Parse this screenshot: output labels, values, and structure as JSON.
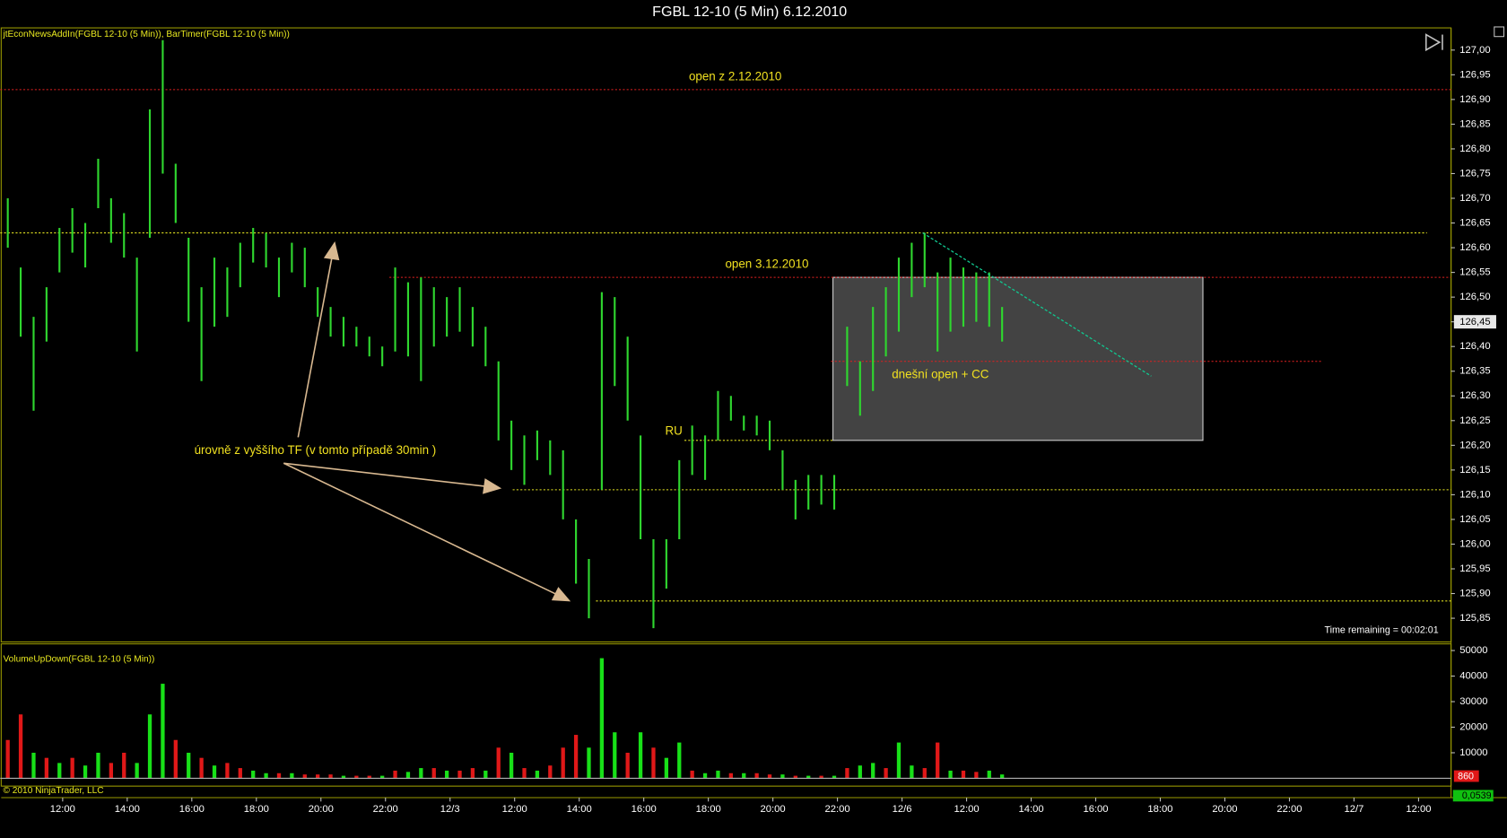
{
  "window_title": "FGBL 12-10 (5 Min)  6.12.2010",
  "chart_data": [
    {
      "type": "ohlc",
      "indicator_label": "jtEconNewsAddIn(FGBL 12-10 (5 Min)), BarTimer(FGBL 12-10 (5 Min))",
      "color": "#2fd62f",
      "x": [
        -0.85,
        -0.65,
        -0.45,
        -0.25,
        -0.05,
        0.15,
        0.35,
        0.55,
        0.75,
        0.95,
        1.15,
        1.35,
        1.55,
        1.75,
        1.95,
        2.15,
        2.35,
        2.55,
        2.75,
        2.95,
        3.15,
        3.35,
        3.55,
        3.75,
        3.95,
        4.15,
        4.35,
        4.55,
        4.75,
        4.95,
        5.15,
        5.35,
        5.55,
        5.75,
        5.95,
        6.15,
        6.35,
        6.55,
        6.75,
        6.95,
        7.15,
        7.35,
        7.55,
        7.75,
        7.95,
        8.15,
        8.35,
        8.55,
        8.75,
        8.95,
        9.15,
        9.35,
        9.55,
        9.75,
        9.95,
        10.15,
        10.35,
        10.55,
        10.75,
        10.95,
        11.15,
        11.35,
        11.55,
        11.75,
        11.95,
        12.15,
        12.35,
        12.55,
        12.75,
        12.95,
        13.15,
        13.35,
        13.55,
        13.75,
        13.95,
        14.15,
        14.35,
        14.55
      ],
      "high": [
        126.7,
        126.56,
        126.46,
        126.52,
        126.64,
        126.68,
        126.65,
        126.78,
        126.7,
        126.67,
        126.58,
        126.88,
        127.02,
        126.77,
        126.62,
        126.52,
        126.58,
        126.56,
        126.61,
        126.64,
        126.63,
        126.58,
        126.61,
        126.6,
        126.52,
        126.48,
        126.46,
        126.44,
        126.42,
        126.4,
        126.56,
        126.53,
        126.54,
        126.52,
        126.5,
        126.52,
        126.48,
        126.44,
        126.37,
        126.25,
        126.22,
        126.23,
        126.21,
        126.19,
        126.05,
        125.97,
        126.51,
        126.5,
        126.42,
        126.22,
        126.01,
        126.01,
        126.17,
        126.24,
        126.22,
        126.31,
        126.3,
        126.26,
        126.26,
        126.25,
        126.19,
        126.13,
        126.14,
        126.14,
        126.14,
        126.44,
        126.37,
        126.48,
        126.52,
        126.58,
        126.61,
        126.63,
        126.55,
        126.58,
        126.56,
        126.55,
        126.55,
        126.48
      ],
      "low": [
        126.6,
        126.42,
        126.27,
        126.41,
        126.55,
        126.59,
        126.56,
        126.68,
        126.61,
        126.58,
        126.39,
        126.62,
        126.75,
        126.65,
        126.45,
        126.33,
        126.44,
        126.46,
        126.52,
        126.57,
        126.56,
        126.5,
        126.55,
        126.52,
        126.46,
        126.42,
        126.4,
        126.4,
        126.38,
        126.36,
        126.39,
        126.38,
        126.33,
        126.4,
        126.42,
        126.43,
        126.4,
        126.36,
        126.21,
        126.15,
        126.12,
        126.17,
        126.14,
        126.05,
        125.92,
        125.85,
        126.11,
        126.32,
        126.25,
        126.01,
        125.83,
        125.91,
        126.01,
        126.14,
        126.13,
        126.21,
        126.25,
        126.23,
        126.22,
        126.19,
        126.11,
        126.05,
        126.07,
        126.08,
        126.07,
        126.32,
        126.26,
        126.31,
        126.38,
        126.43,
        126.5,
        126.52,
        126.39,
        126.43,
        126.44,
        126.45,
        126.44,
        126.41
      ],
      "xlim": [
        -0.967,
        21.503
      ],
      "xticks": [
        {
          "value": 0,
          "label": "12:00"
        },
        {
          "value": 1,
          "label": "14:00"
        },
        {
          "value": 2,
          "label": "16:00"
        },
        {
          "value": 3,
          "label": "18:00"
        },
        {
          "value": 4,
          "label": "20:00"
        },
        {
          "value": 5,
          "label": "22:00"
        },
        {
          "value": 6,
          "label": "12/3"
        },
        {
          "value": 7,
          "label": "12:00"
        },
        {
          "value": 8,
          "label": "14:00"
        },
        {
          "value": 9,
          "label": "16:00"
        },
        {
          "value": 10,
          "label": "18:00"
        },
        {
          "value": 11,
          "label": "20:00"
        },
        {
          "value": 12,
          "label": "22:00"
        },
        {
          "value": 13,
          "label": "12/6"
        },
        {
          "value": 14,
          "label": "12:00"
        },
        {
          "value": 15,
          "label": "14:00"
        },
        {
          "value": 16,
          "label": "16:00"
        },
        {
          "value": 17,
          "label": "18:00"
        },
        {
          "value": 18,
          "label": "20:00"
        },
        {
          "value": 19,
          "label": "22:00"
        },
        {
          "value": 20,
          "label": "12/7"
        },
        {
          "value": 21,
          "label": "12:00"
        }
      ],
      "ylim": [
        125.802,
        127.043
      ],
      "yticks": [
        {
          "value": 125.85,
          "label": "125,85"
        },
        {
          "value": 125.9,
          "label": "125,90"
        },
        {
          "value": 125.95,
          "label": "125,95"
        },
        {
          "value": 126.0,
          "label": "126,00"
        },
        {
          "value": 126.05,
          "label": "126,05"
        },
        {
          "value": 126.1,
          "label": "126,10"
        },
        {
          "value": 126.15,
          "label": "126,15"
        },
        {
          "value": 126.2,
          "label": "126,20"
        },
        {
          "value": 126.25,
          "label": "126,25"
        },
        {
          "value": 126.3,
          "label": "126,30"
        },
        {
          "value": 126.35,
          "label": "126,35"
        },
        {
          "value": 126.4,
          "label": "126,40"
        },
        {
          "value": 126.45,
          "label": "126,45"
        },
        {
          "value": 126.5,
          "label": "126,50"
        },
        {
          "value": 126.55,
          "label": "126,55"
        },
        {
          "value": 126.6,
          "label": "126,60"
        },
        {
          "value": 126.65,
          "label": "126,65"
        },
        {
          "value": 126.7,
          "label": "126,70"
        },
        {
          "value": 126.75,
          "label": "126,75"
        },
        {
          "value": 126.8,
          "label": "126,80"
        },
        {
          "value": 126.85,
          "label": "126,85"
        },
        {
          "value": 126.9,
          "label": "126,90"
        },
        {
          "value": 126.95,
          "label": "126,95"
        },
        {
          "value": 127.0,
          "label": "127,00"
        }
      ],
      "levels": [
        {
          "value": 126.92,
          "x": [
            -0.967,
            21.503
          ],
          "color": "#e02020",
          "label": "open z 2.12.2010"
        },
        {
          "value": 126.63,
          "x": [
            -0.967,
            21.13
          ],
          "color": "#e0e020"
        },
        {
          "value": 126.54,
          "x": [
            5.06,
            21.503
          ],
          "color": "#e02020",
          "label": "open 3.12.2010"
        },
        {
          "value": 126.21,
          "x": [
            9.63,
            11.95
          ],
          "color": "#e0e020"
        },
        {
          "value": 126.11,
          "x": [
            6.97,
            21.503
          ],
          "color": "#e0e020"
        },
        {
          "value": 125.885,
          "x": [
            8.26,
            21.503
          ],
          "color": "#e0e020"
        },
        {
          "value": 126.37,
          "x": [
            11.9,
            19.49
          ],
          "color": "#e02020",
          "label": "dnešní open + CC"
        }
      ],
      "box": {
        "x": [
          11.93,
          17.66
        ],
        "y": [
          126.54,
          126.21
        ],
        "color": "#5a5a5a"
      },
      "trendline": {
        "x": [
          13.32,
          16.86
        ],
        "y": [
          126.63,
          126.34
        ],
        "color": "#10c890"
      },
      "annotations": [
        "RU",
        "úrovně z vyššího TF (v tomto případě 30min )"
      ],
      "last_price": {
        "value": 126.45,
        "label": "126,45"
      },
      "timer": "Time remaining = 00:02:01"
    },
    {
      "type": "bar",
      "indicator_label": "VolumeUpDown(FGBL 12-10 (5 Min))",
      "series": [
        {
          "color": "#18e018",
          "values": [
            null,
            null,
            10000,
            null,
            6000,
            null,
            5000,
            10000,
            null,
            null,
            6000,
            25000,
            37000,
            null,
            10000,
            null,
            5000,
            null,
            null,
            3000,
            2000,
            null,
            2000,
            null,
            null,
            null,
            1000,
            null,
            null,
            1000,
            null,
            2500,
            4000,
            null,
            3000,
            null,
            null,
            3000,
            null,
            10000,
            null,
            3000,
            null,
            null,
            null,
            12000,
            47000,
            18000,
            null,
            18000,
            null,
            8000,
            14000,
            null,
            2000,
            3000,
            null,
            2000,
            null,
            null,
            1500,
            null,
            1000,
            null,
            1000,
            null,
            5000,
            6000,
            null,
            14000,
            5000,
            null,
            null,
            3000,
            null,
            null,
            3000,
            1500
          ]
        },
        {
          "color": "#e01818",
          "values": [
            15000,
            25000,
            null,
            8000,
            null,
            8000,
            null,
            null,
            6000,
            10000,
            null,
            null,
            null,
            15000,
            null,
            8000,
            null,
            6000,
            4000,
            null,
            null,
            2000,
            null,
            1500,
            1500,
            1500,
            null,
            1000,
            1000,
            null,
            3000,
            null,
            null,
            4000,
            null,
            3000,
            4000,
            null,
            12000,
            null,
            4000,
            null,
            5000,
            12000,
            17000,
            null,
            null,
            null,
            10000,
            null,
            12000,
            null,
            null,
            3000,
            null,
            null,
            2000,
            null,
            2000,
            1500,
            null,
            1000,
            null,
            1000,
            null,
            4000,
            null,
            null,
            4000,
            null,
            null,
            4000,
            14000,
            null,
            3000,
            2500,
            null,
            null
          ]
        }
      ],
      "ylim": [
        -2300,
        52600
      ],
      "yticks": [
        10000,
        20000,
        30000,
        40000,
        50000
      ],
      "last_value": 860
    }
  ],
  "footer": {
    "copyright": "© 2010 NinjaTrader, LLC",
    "value_label": "0,0539"
  }
}
